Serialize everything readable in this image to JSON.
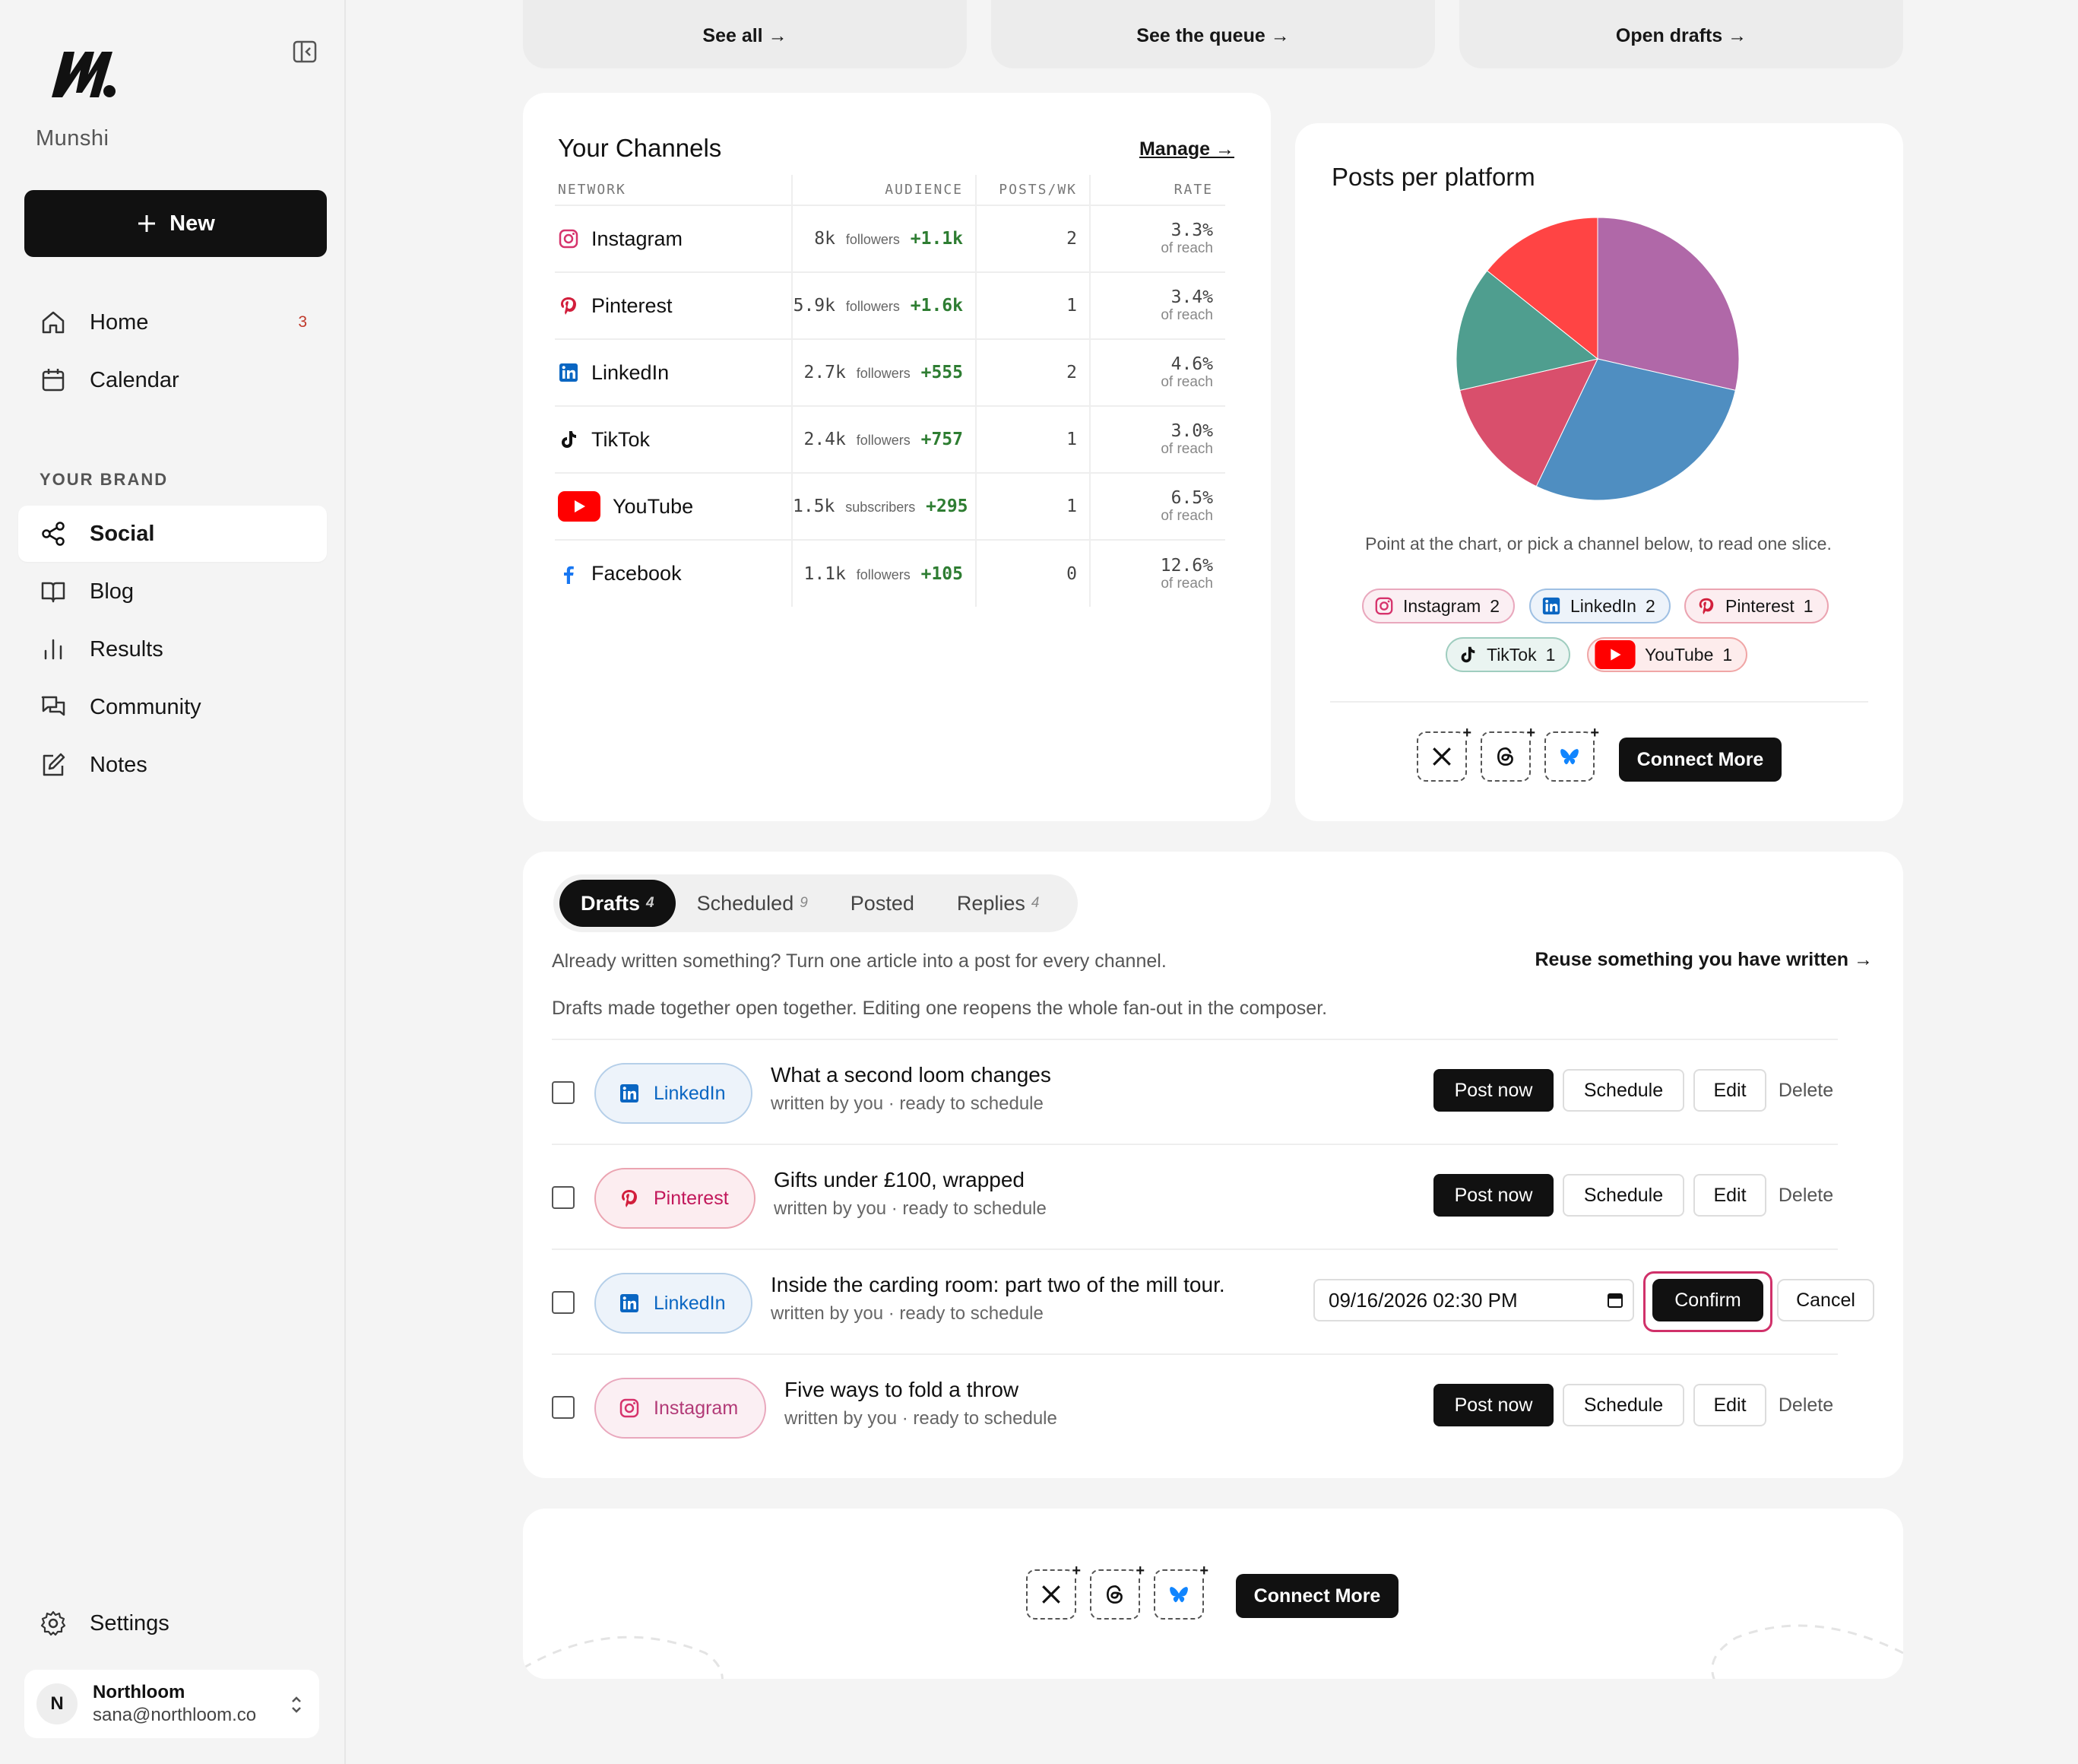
{
  "sidebar": {
    "brand_name": "Munshi",
    "new_label": "New",
    "nav_top": [
      {
        "label": "Home",
        "icon": "home-icon",
        "badge": "3"
      },
      {
        "label": "Calendar",
        "icon": "calendar-icon"
      }
    ],
    "section_title": "YOUR BRAND",
    "nav_brand": [
      {
        "label": "Social",
        "icon": "share-icon",
        "active": true
      },
      {
        "label": "Blog",
        "icon": "book-icon"
      },
      {
        "label": "Results",
        "icon": "bar-chart-icon"
      },
      {
        "label": "Community",
        "icon": "chat-icon"
      },
      {
        "label": "Notes",
        "icon": "edit-icon"
      }
    ],
    "settings_label": "Settings",
    "user": {
      "initial": "N",
      "name": "Northloom",
      "email": "sana@northloom.co"
    }
  },
  "top_links": [
    "See all →",
    "See the queue →",
    "Open drafts →"
  ],
  "channels": {
    "title": "Your Channels",
    "manage_label": "Manage →",
    "headers": [
      "NETWORK",
      "AUDIENCE",
      "POSTS/WK",
      "RATE"
    ],
    "rows": [
      {
        "network": "Instagram",
        "count": "8k",
        "unit": "followers",
        "growth": "+1.1k",
        "posts": "2",
        "rate": "3.3%",
        "rate_note": "of reach"
      },
      {
        "network": "Pinterest",
        "count": "5.9k",
        "unit": "followers",
        "growth": "+1.6k",
        "posts": "1",
        "rate": "3.4%",
        "rate_note": "of reach"
      },
      {
        "network": "LinkedIn",
        "count": "2.7k",
        "unit": "followers",
        "growth": "+555",
        "posts": "2",
        "rate": "4.6%",
        "rate_note": "of reach"
      },
      {
        "network": "TikTok",
        "count": "2.4k",
        "unit": "followers",
        "growth": "+757",
        "posts": "1",
        "rate": "3.0%",
        "rate_note": "of reach"
      },
      {
        "network": "YouTube",
        "count": "1.5k",
        "unit": "subscribers",
        "growth": "+295",
        "posts": "1",
        "rate": "6.5%",
        "rate_note": "of reach"
      },
      {
        "network": "Facebook",
        "count": "1.1k",
        "unit": "followers",
        "growth": "+105",
        "posts": "0",
        "rate": "12.6%",
        "rate_note": "of reach"
      }
    ]
  },
  "posts_per_platform": {
    "title": "Posts per platform",
    "hint": "Point at the chart, or pick a channel below, to read one slice.",
    "chips": [
      {
        "label": "Instagram",
        "count": "2"
      },
      {
        "label": "LinkedIn",
        "count": "2"
      },
      {
        "label": "Pinterest",
        "count": "1"
      },
      {
        "label": "TikTok",
        "count": "1"
      },
      {
        "label": "YouTube",
        "count": "1"
      }
    ],
    "connect_label": "Connect More"
  },
  "chart_data": {
    "type": "pie",
    "series": [
      {
        "name": "Instagram",
        "value": 2,
        "color": "#b068a8"
      },
      {
        "name": "LinkedIn",
        "value": 2,
        "color": "#4f8ec1"
      },
      {
        "name": "Pinterest",
        "value": 1,
        "color": "#d94f6c"
      },
      {
        "name": "TikTok",
        "value": 1,
        "color": "#4f9e8f"
      },
      {
        "name": "YouTube",
        "value": 1,
        "color": "#ff4444"
      }
    ]
  },
  "drafts": {
    "tabs": [
      {
        "label": "Drafts",
        "count": "4"
      },
      {
        "label": "Scheduled",
        "count": "9"
      },
      {
        "label": "Posted",
        "count": ""
      },
      {
        "label": "Replies",
        "count": "4"
      }
    ],
    "intro": "Already written something? Turn one article into a post for every channel.",
    "reuse_label": "Reuse something you have written →",
    "note": "Drafts made together open together. Editing one reopens the whole fan-out in the composer.",
    "items": [
      {
        "channel": "LinkedIn",
        "title": "What a second loom changes",
        "sub": "written by you · ready to schedule"
      },
      {
        "channel": "Pinterest",
        "title": "Gifts under £100, wrapped",
        "sub": "written by you · ready to schedule"
      },
      {
        "channel": "LinkedIn",
        "title": "Inside the carding room: part two of the mill tour.",
        "sub": "written by you · ready to schedule",
        "schedule_value": "09/16/2026 02:30 PM"
      },
      {
        "channel": "Instagram",
        "title": "Five ways to fold a throw",
        "sub": "written by you · ready to schedule"
      }
    ],
    "actions": {
      "post_now": "Post now",
      "schedule": "Schedule",
      "edit": "Edit",
      "delete": "Delete",
      "confirm": "Confirm",
      "cancel": "Cancel"
    }
  },
  "bottom": {
    "connect_label": "Connect More"
  }
}
